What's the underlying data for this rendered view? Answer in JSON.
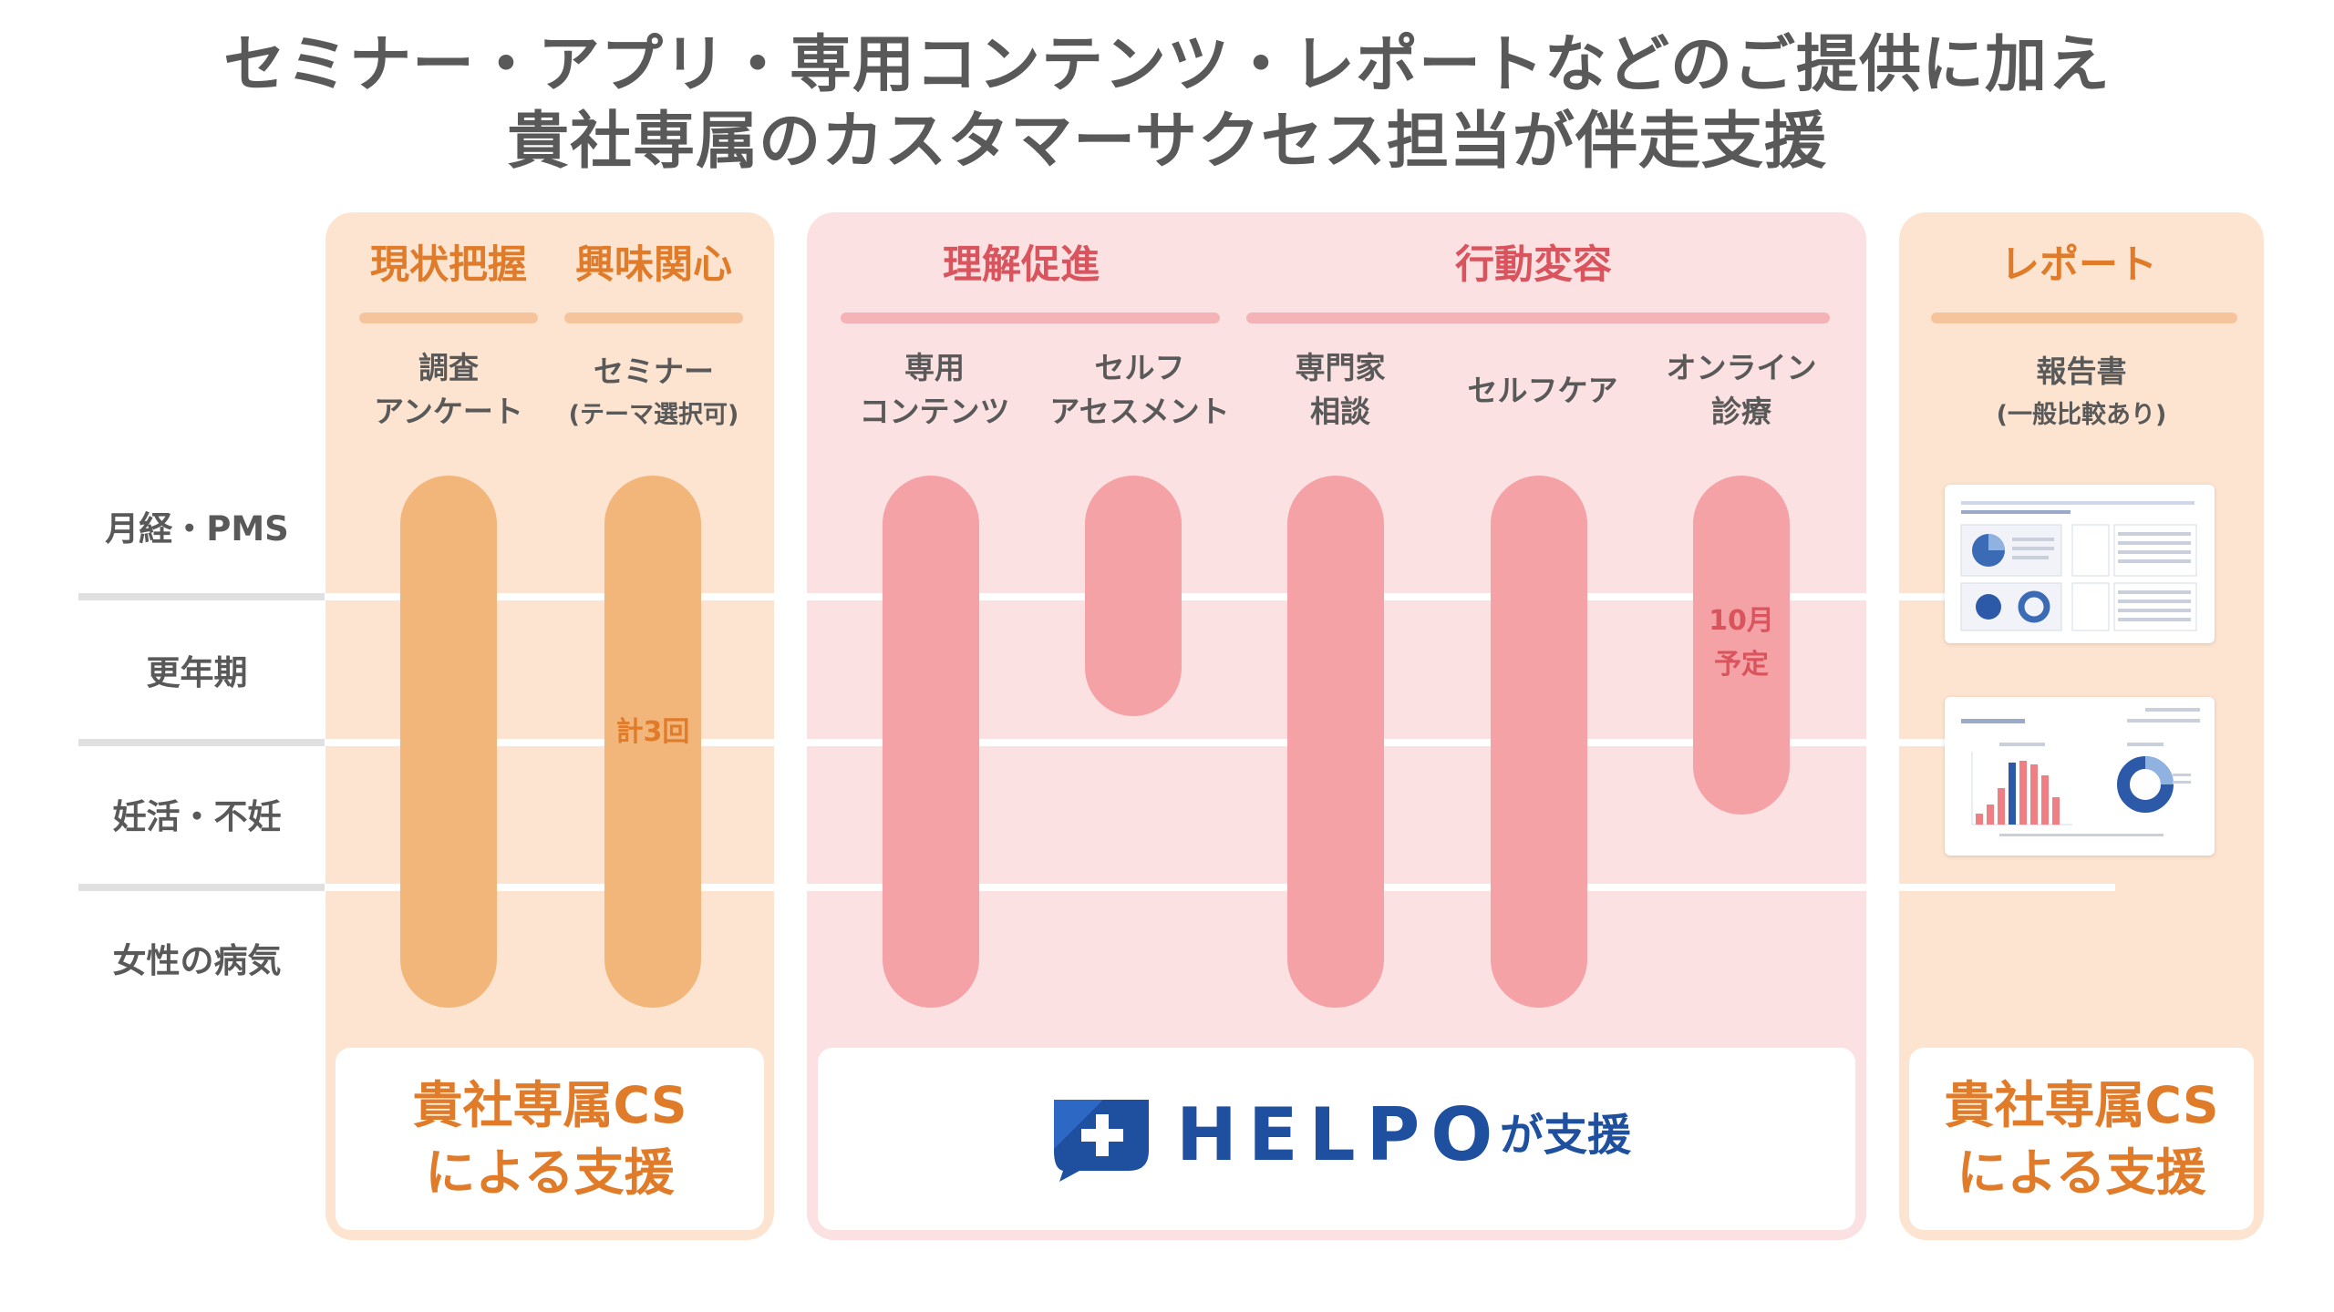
{
  "title": {
    "line1": "セミナー・アプリ・専用コンテンツ・レポートなどのご提供に加え",
    "line2": "貴社専属のカスタマーサクセス担当が伴走支援"
  },
  "categories": [
    "月経・PMS",
    "更年期",
    "妊活・不妊",
    "女性の病気"
  ],
  "phases": {
    "current": "現状把握",
    "interest": "興味関心",
    "understanding": "理解促進",
    "behavior": "行動変容",
    "report": "レポート"
  },
  "tools": {
    "survey": "調査\nアンケート",
    "seminar": "セミナー",
    "seminar_note": "(テーマ選択可)",
    "content": "専用\nコンテンツ",
    "self_assessment": "セルフ\nアセスメント",
    "consult": "専門家\n相談",
    "selfcare": "セルフケア",
    "online": "オンライン\n診療",
    "report": "報告書",
    "report_note": "(一般比較あり)"
  },
  "pill_labels": {
    "seminar_count": "計3回",
    "online_schedule": "10月\n予定"
  },
  "footer": {
    "left": "貴社専属CS\nによる支援",
    "logo": "HELPO",
    "logo_support": "が支援",
    "right": "貴社専属CS\nによる支援"
  },
  "colors": {
    "orange_panel": "#fde4d0",
    "pink_panel": "#fce1e2",
    "orange_pill": "#f2b67b",
    "pink_pill": "#f4a2a5",
    "orange_text": "#e07b2a",
    "red_text": "#d9545d",
    "helpo_blue": "#1f4f9f"
  },
  "icons": [
    "helpo-shield-plus-icon"
  ]
}
